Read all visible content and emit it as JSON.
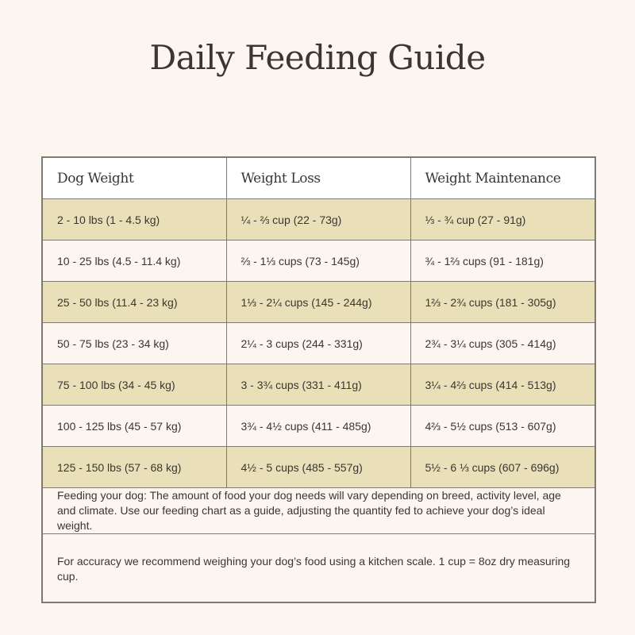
{
  "title": "Daily Feeding Guide",
  "colors": {
    "page_background": "#fdf5f0",
    "header_background": "#ffffff",
    "shaded_row": "#e9e0ba",
    "border": "#7d7973",
    "text": "#3a3632"
  },
  "table": {
    "headers": [
      "Dog Weight",
      "Weight Loss",
      "Weight Maintenance"
    ],
    "rows": [
      {
        "dog_weight": "2 - 10 lbs (1 - 4.5 kg)",
        "weight_loss": "¼ - ⅔ cup (22 - 73g)",
        "weight_maintenance": "⅓ - ¾ cup (27 - 91g)",
        "shaded": true
      },
      {
        "dog_weight": "10 - 25 lbs (4.5 - 11.4 kg)",
        "weight_loss": "⅔ - 1⅓ cups (73 - 145g)",
        "weight_maintenance": "¾ - 1⅔ cups (91 - 181g)",
        "shaded": false
      },
      {
        "dog_weight": "25 - 50 lbs (11.4 - 23 kg)",
        "weight_loss": "1⅓ - 2¼ cups (145 - 244g)",
        "weight_maintenance": "1⅔ - 2¾ cups (181 - 305g)",
        "shaded": true
      },
      {
        "dog_weight": "50 - 75 lbs (23 - 34 kg)",
        "weight_loss": "2¼ - 3 cups (244 - 331g)",
        "weight_maintenance": "2¾ - 3¼ cups (305 - 414g)",
        "shaded": false
      },
      {
        "dog_weight": "75 - 100 lbs (34 - 45 kg)",
        "weight_loss": "3 - 3¾ cups (331 - 411g)",
        "weight_maintenance": "3¼ - 4⅔ cups (414 - 513g)",
        "shaded": true
      },
      {
        "dog_weight": "100 - 125 lbs (45 - 57 kg)",
        "weight_loss": "3¾ - 4½ cups (411 - 485g)",
        "weight_maintenance": "4⅔ - 5½ cups (513 - 607g)",
        "shaded": false
      },
      {
        "dog_weight": "125 - 150 lbs (57 - 68 kg)",
        "weight_loss": "4½ - 5 cups (485 - 557g)",
        "weight_maintenance": "5½ - 6 ⅓ cups (607 - 696g)",
        "shaded": true
      }
    ],
    "notes": [
      "Feeding your dog: The amount of food your dog needs will vary depending on breed, activity level, age and climate. Use our feeding chart as a guide, adjusting the quantity fed to achieve your dog’s ideal weight.",
      "For accuracy we recommend weighing your dog’s food using a kitchen scale. 1 cup = 8oz dry measuring cup."
    ]
  }
}
